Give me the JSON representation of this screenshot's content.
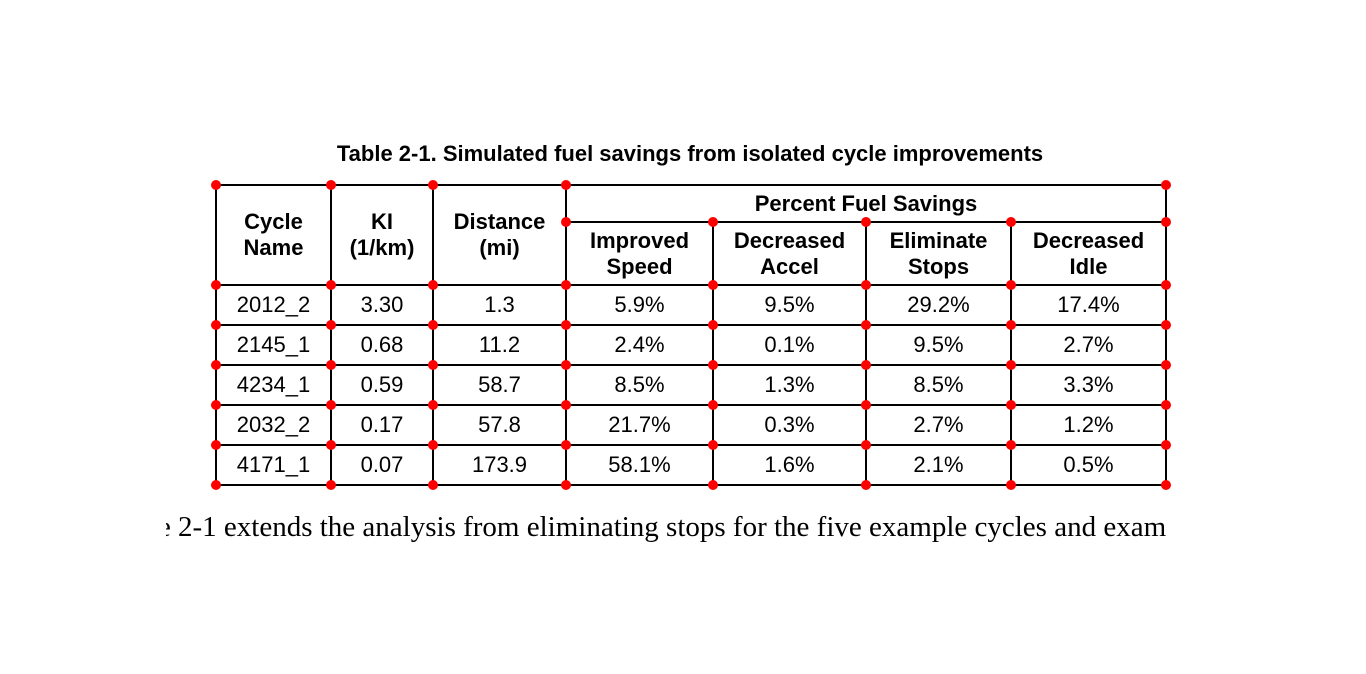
{
  "chart_data": {
    "type": "table",
    "title": "Table 2-1. Simulated fuel savings from isolated cycle improvements",
    "columns": [
      "Cycle Name",
      "KI (1/km)",
      "Distance (mi)"
    ],
    "column_group": {
      "label": "Percent Fuel Savings",
      "spans": [
        "Improved Speed",
        "Decreased Accel",
        "Eliminate Stops",
        "Decreased Idle"
      ]
    },
    "rows": [
      [
        "2012_2",
        "3.30",
        "1.3",
        "5.9%",
        "9.5%",
        "29.2%",
        "17.4%"
      ],
      [
        "2145_1",
        "0.68",
        "11.2",
        "2.4%",
        "0.1%",
        "9.5%",
        "2.7%"
      ],
      [
        "4234_1",
        "0.59",
        "58.7",
        "8.5%",
        "1.3%",
        "8.5%",
        "3.3%"
      ],
      [
        "2032_2",
        "0.17",
        "57.8",
        "21.7%",
        "0.3%",
        "2.7%",
        "1.2%"
      ],
      [
        "4171_1",
        "0.07",
        "173.9",
        "58.1%",
        "1.6%",
        "2.1%",
        "0.5%"
      ]
    ]
  },
  "body_text": {
    "visible": "2-1 extends the analysis from eliminating stops for the five example cycles and exam",
    "clipped_leading_char": "e"
  },
  "annotations": {
    "corner_marker_color": "#ff0000",
    "corner_marker_description": "red dot at each table cell corner"
  }
}
